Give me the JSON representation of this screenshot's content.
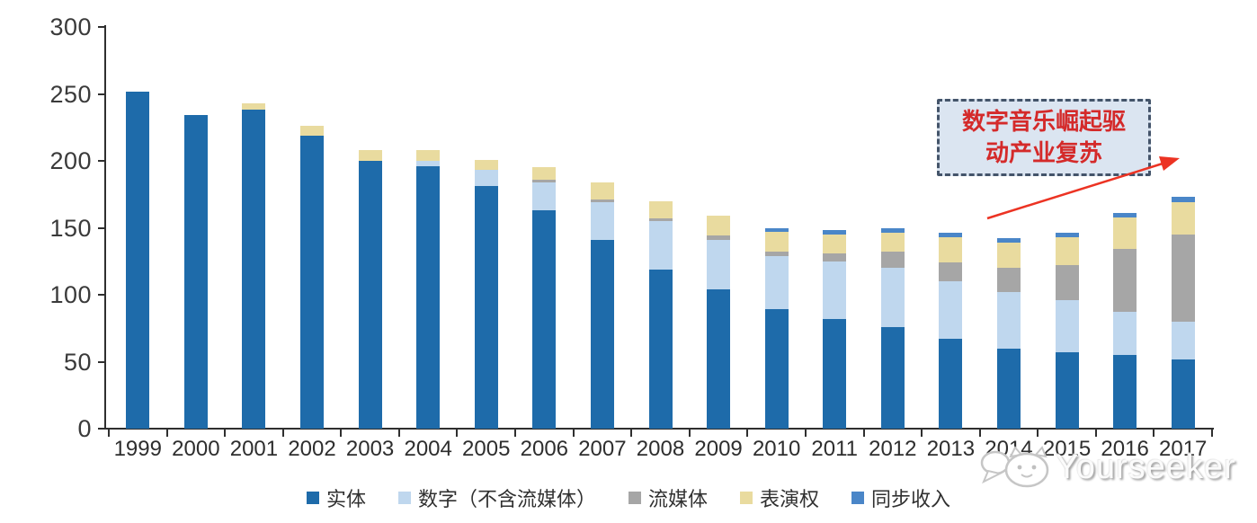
{
  "chart_data": {
    "type": "bar",
    "stacked": true,
    "title": "",
    "xlabel": "",
    "ylabel": "",
    "ylim": [
      0,
      300
    ],
    "ytick_step": 50,
    "grid": false,
    "legend_position": "bottom",
    "categories": [
      "1999",
      "2000",
      "2001",
      "2002",
      "2003",
      "2004",
      "2005",
      "2006",
      "2007",
      "2008",
      "2009",
      "2010",
      "2011",
      "2012",
      "2013",
      "2014",
      "2015",
      "2016",
      "2017"
    ],
    "series": [
      {
        "name": "实体",
        "key": "physical",
        "color": "#1e6baa",
        "values": [
          252,
          234,
          238,
          219,
          200,
          196,
          181,
          163,
          141,
          119,
          104,
          89,
          82,
          76,
          67,
          60,
          57,
          55,
          52
        ]
      },
      {
        "name": "数字（不含流媒体）",
        "key": "digital-excl-streaming",
        "color": "#bfd7ee",
        "values": [
          0,
          0,
          0,
          0,
          0,
          4,
          12,
          21,
          28,
          36,
          37,
          40,
          43,
          44,
          43,
          42,
          39,
          32,
          28
        ]
      },
      {
        "name": "流媒体",
        "key": "streaming",
        "color": "#a6a6a6",
        "values": [
          0,
          0,
          0,
          0,
          0,
          0,
          0,
          2,
          2,
          2,
          3,
          3,
          6,
          12,
          14,
          18,
          26,
          47,
          65
        ]
      },
      {
        "name": "表演权",
        "key": "performance-rights",
        "color": "#e9db9f",
        "values": [
          0,
          0,
          5,
          7,
          8,
          8,
          8,
          9,
          13,
          13,
          15,
          15,
          14,
          14,
          19,
          19,
          21,
          24,
          24
        ]
      },
      {
        "name": "同步收入",
        "key": "sync-revenue",
        "color": "#4a86c8",
        "values": [
          0,
          0,
          0,
          0,
          0,
          0,
          0,
          0,
          0,
          0,
          0,
          3,
          3,
          4,
          3,
          3,
          3,
          3,
          4
        ]
      }
    ],
    "ytick_labels": [
      "0",
      "50",
      "100",
      "150",
      "200",
      "250",
      "300"
    ]
  },
  "annotation": {
    "line1": "数字音乐崛起驱",
    "line2": "动产业复苏",
    "text_color": "#d42a2a",
    "box_fill": "#dbe5f1",
    "box_border": "#44546a",
    "arrow_color": "#ec3323"
  },
  "watermark": {
    "text": "Yourseeker"
  }
}
